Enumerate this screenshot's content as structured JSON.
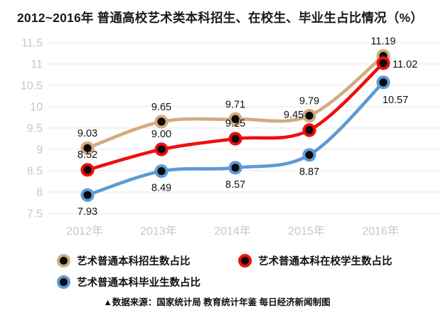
{
  "title": "2012~2016年 普通高校艺术类本科招生、在校生、毕业生占比情况（%）",
  "footer": "▲数据来源：国家统计局 教育统计年鉴 每日经济新闻制图",
  "chart_data": {
    "type": "line",
    "categories": [
      "2012年",
      "2013年",
      "2014年",
      "2015年",
      "2016年"
    ],
    "series": [
      {
        "name": "艺术普通本科招生数占比",
        "color": "#d2ab7e",
        "values": [
          9.03,
          9.65,
          9.71,
          9.79,
          11.19
        ]
      },
      {
        "name": "艺术普通本科在校学生数占比",
        "color": "#f20d0d",
        "values": [
          8.52,
          9.0,
          9.25,
          9.45,
          11.02
        ]
      },
      {
        "name": "艺术普通本科毕业生数占比",
        "color": "#5b9bd5",
        "values": [
          7.93,
          8.49,
          8.57,
          8.87,
          10.57
        ]
      }
    ],
    "ylim": [
      7.5,
      11.5
    ],
    "ytick_step": 0.5,
    "ytick_labels": [
      "7.5",
      "8",
      "8.5",
      "9",
      "9.5",
      "10",
      "10.5",
      "11",
      "11.5"
    ],
    "grid": true,
    "legend_position": "bottom",
    "marker_style": "colored-ring-black-center",
    "marker_center_color": "#0a0a0a",
    "grid_color": "#e9e9e9",
    "tick_label_color": "#c2c8d2",
    "data_label_color": "#111111"
  }
}
